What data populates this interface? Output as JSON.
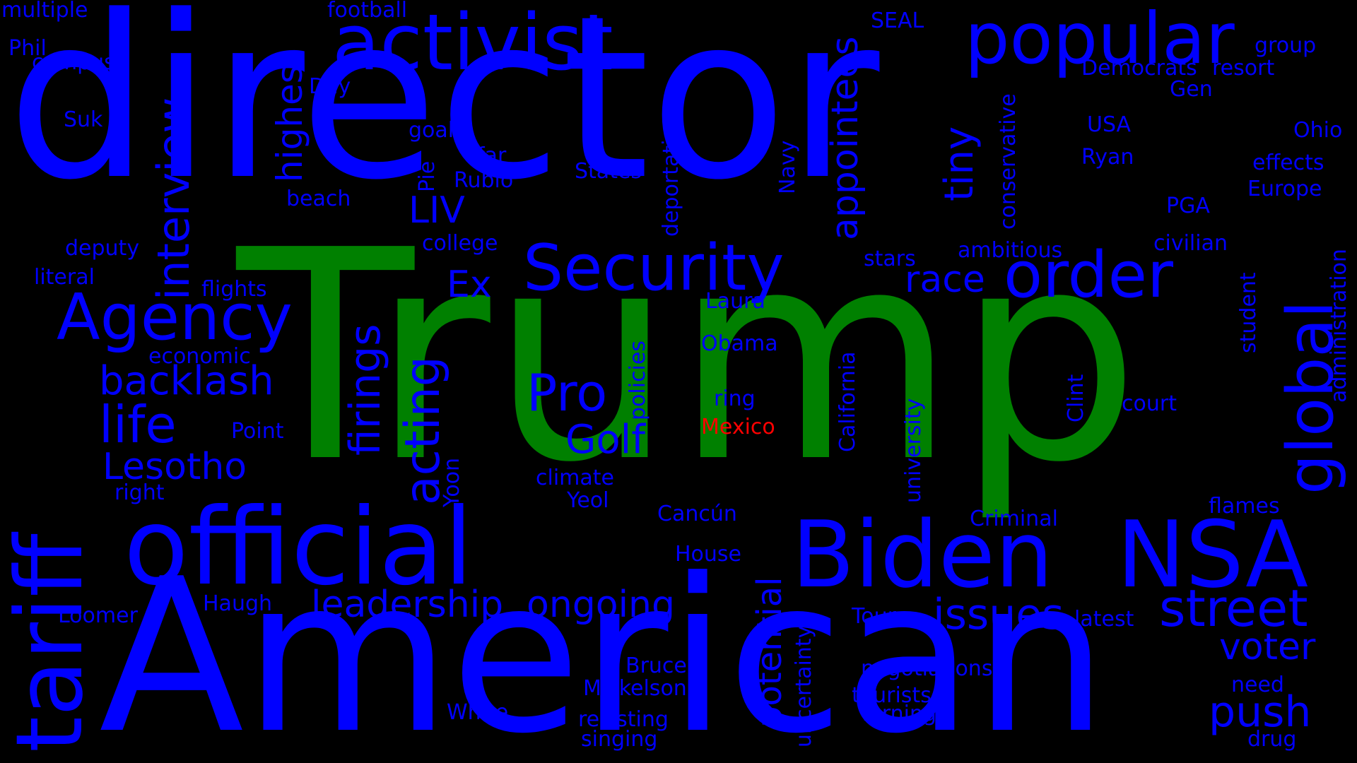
{
  "colors": {
    "background": "#000000",
    "primary": "#0000ff",
    "highlight": "#008000",
    "accent": "#ff0000"
  },
  "words": {
    "director": "director",
    "trump": "Trump",
    "american": "American",
    "official": "official",
    "tariff": "tariff",
    "activist": "activist",
    "popular": "popular",
    "biden": "Biden",
    "nsa": "NSA",
    "security": "Security",
    "order": "order",
    "agency": "Agency",
    "global": "global",
    "street": "street",
    "interview": "interview",
    "appointees": "appointees",
    "acting": "acting",
    "life": "life",
    "backlash": "backlash",
    "lesotho": "Lesotho",
    "pro": "Pro",
    "golf": "Golf",
    "leadership": "leadership",
    "ongoing": "ongoing",
    "issues": "issues",
    "push": "push",
    "voter": "voter",
    "firings": "firings",
    "highest": "highest",
    "potential": "potential",
    "race": "race",
    "liv": "LIV",
    "ex": "Ex",
    "tiny": "tiny",
    "mexico": "Mexico",
    "multiple": "multiple",
    "football": "football",
    "phil": "Phil",
    "campus": "campus",
    "seal": "SEAL",
    "group": "group",
    "democrats": "Democrats",
    "resort": "resort",
    "gen": "Gen",
    "day": "Day",
    "suk": "Suk",
    "goals": "goals",
    "usa": "USA",
    "ohio": "Ohio",
    "ryan": "Ryan",
    "effects": "effects",
    "far": "far",
    "states": "States",
    "rubio": "Rubio",
    "europe": "Europe",
    "beach": "beach",
    "pga": "PGA",
    "college": "college",
    "deputy": "deputy",
    "ambitious": "ambitious",
    "civilian": "civilian",
    "stars": "stars",
    "literal": "literal",
    "flights": "flights",
    "laura": "Laura",
    "obama": "Obama",
    "economic": "economic",
    "ring": "ring",
    "court": "court",
    "point": "Point",
    "climate": "climate",
    "right": "right",
    "yeol": "Yeol",
    "cancun": "Cancún",
    "flames": "flames",
    "criminal": "Criminal",
    "house": "House",
    "haugh": "Haugh",
    "loomer": "Loomer",
    "tour": "Tour",
    "latest": "latest",
    "bruce": "Bruce",
    "negotiations": "negotiations",
    "mickelson": "Mickelson",
    "tourists": "tourists",
    "need": "need",
    "white": "White",
    "resisting": "resisting",
    "turning": "Turning",
    "singing": "singing",
    "drug": "drug",
    "pie": "Pie",
    "deportation": "deportation",
    "navy": "Navy",
    "conservative": "conservative",
    "student": "student",
    "administration": "administration",
    "policies": "policies",
    "california": "California",
    "university": "university",
    "clint": "Clint",
    "yoon": "Yoon",
    "uncertainty": "uncertainty"
  }
}
